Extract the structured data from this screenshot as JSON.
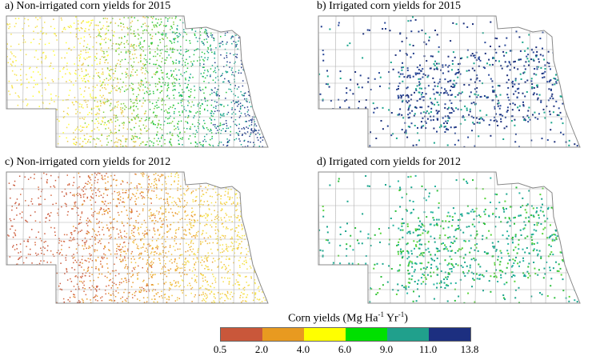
{
  "panels": [
    {
      "id": "a",
      "title": "a) Non-irrigated corn yields for 2015",
      "irrigated": false,
      "palette": [
        "#f6e24a",
        "#ffff33",
        "#e8c84a",
        "#7ccd3a",
        "#22c53a",
        "#1aa58c",
        "#203c8c"
      ]
    },
    {
      "id": "b",
      "title": "b) Irrigated corn yields for 2015",
      "irrigated": true,
      "palette": [
        "#203c8c",
        "#1b2f7a",
        "#2c4b9a",
        "#1aa58c"
      ]
    },
    {
      "id": "c",
      "title": "c) Non-irrigated corn yields for 2012",
      "irrigated": false,
      "palette": [
        "#c9573a",
        "#d66a3f",
        "#e89a30",
        "#f0c040",
        "#f6e24a"
      ]
    },
    {
      "id": "d",
      "title": "d) Irrigated corn yields for 2012",
      "irrigated": true,
      "palette": [
        "#1aa58c",
        "#25b3a0",
        "#2bbf3a",
        "#58d43a",
        "#1aa58c"
      ]
    }
  ],
  "legend": {
    "title_main": "Corn yields (Mg Ha",
    "sup1": "-1",
    "title_mid": " Yr",
    "sup2": "-1",
    "title_end": ")",
    "colors": [
      "#c9573a",
      "#e89a20",
      "#ffff00",
      "#00e000",
      "#20a08c",
      "#1c2f80"
    ],
    "ticks": [
      "0.5",
      "2.0",
      "4.0",
      "6.0",
      "9.0",
      "11.0",
      "13.8"
    ]
  }
}
